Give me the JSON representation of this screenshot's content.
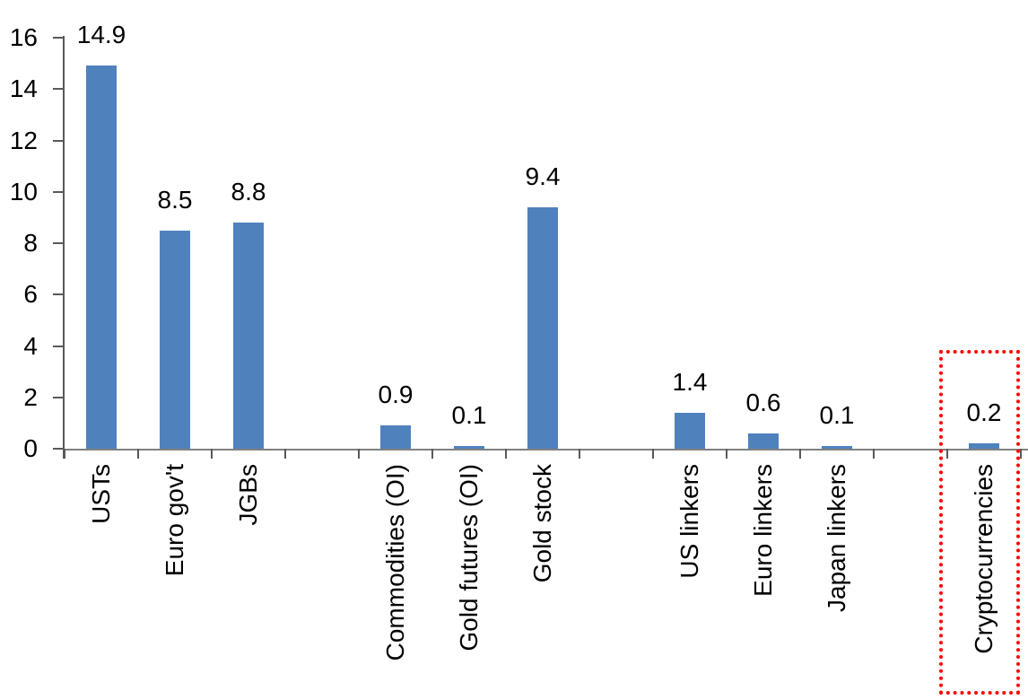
{
  "chart_data": {
    "type": "bar",
    "categories": [
      "USTs",
      "Euro gov't",
      "JGBs",
      "",
      "Commodities (OI)",
      "Gold futures (OI)",
      "Gold stock",
      "",
      "US linkers",
      "Euro linkers",
      "Japan linkers",
      "",
      "Cryptocurrencies"
    ],
    "values": [
      14.9,
      8.5,
      8.8,
      null,
      0.9,
      0.1,
      9.4,
      null,
      1.4,
      0.6,
      0.1,
      null,
      0.2
    ],
    "value_labels": [
      "14.9",
      "8.5",
      "8.8",
      "",
      "0.9",
      "0.1",
      "9.4",
      "",
      "1.4",
      "0.6",
      "0.1",
      "",
      "0.2"
    ],
    "y_axis": {
      "min": 0,
      "max": 16,
      "step": 2,
      "tick_labels": [
        "0",
        "2",
        "4",
        "6",
        "8",
        "10",
        "12",
        "14",
        "16"
      ]
    },
    "grid": false,
    "legend": false,
    "bar_color": "#4F81BD",
    "x_axis_color": "#808080",
    "y_axis_color": "#595959",
    "tick_color": "#595959",
    "text_color": "#000000",
    "highlight_box": {
      "around_category": "Cryptocurrencies",
      "border_color": "#FF0000",
      "style": "square-dotted"
    }
  }
}
